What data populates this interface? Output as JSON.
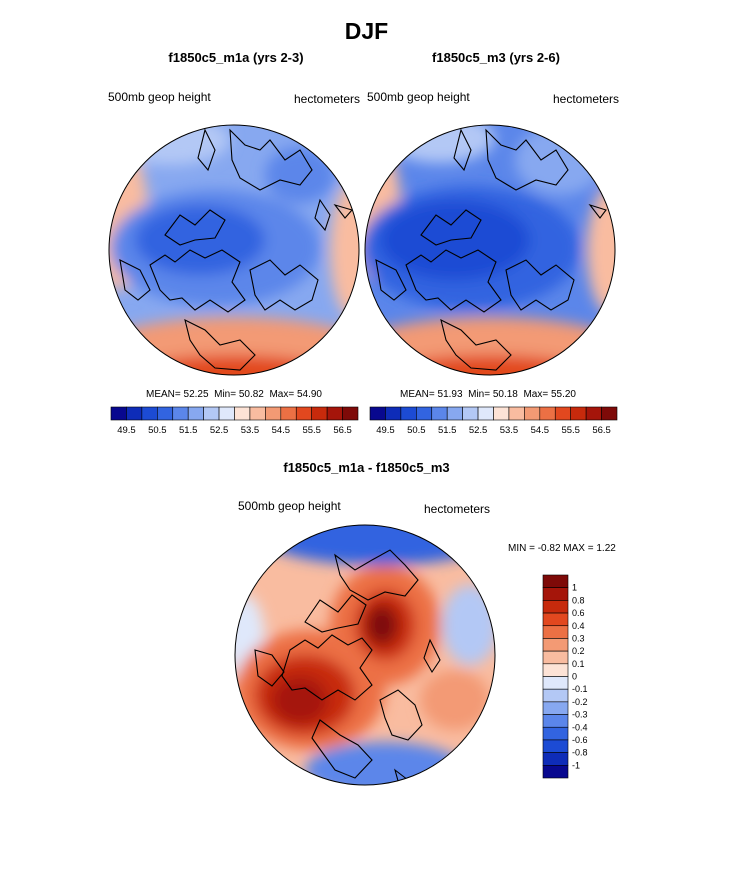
{
  "page": {
    "title": "DJF"
  },
  "panels": [
    {
      "title": "f1850c5_m1a (yrs 2-3)",
      "left_label": "500mb geop height",
      "right_label": "hectometers",
      "stats": {
        "mean_label": "MEAN=",
        "mean": "52.25",
        "min_label": "Min=",
        "min": "50.82",
        "max_label": "Max=",
        "max": "54.90"
      }
    },
    {
      "title": "f1850c5_m3 (yrs 2-6)",
      "left_label": "500mb geop height",
      "right_label": "hectometers",
      "stats": {
        "mean_label": "MEAN=",
        "mean": "51.93",
        "min_label": "Min=",
        "min": "50.18",
        "max_label": "Max=",
        "max": "55.20"
      }
    },
    {
      "title": "f1850c5_m1a - f1850c5_m3",
      "left_label": "500mb geop height",
      "right_label": "hectometers",
      "stats_text": "MIN =  -0.82 MAX =   1.22"
    }
  ],
  "colors": {
    "top_scale": [
      "#08088f",
      "#0e2cb8",
      "#1c4bd4",
      "#3264e0",
      "#5b86ea",
      "#87a8f0",
      "#b3c8f5",
      "#dfe8fb",
      "#fde3d6",
      "#f9bca0",
      "#f39a74",
      "#ec7044",
      "#e2481f",
      "#c72a0c",
      "#a5150a",
      "#7e0a08"
    ],
    "diff_scale": [
      "#7e0a08",
      "#a5150a",
      "#c72a0c",
      "#e2481f",
      "#ec7044",
      "#f39a74",
      "#f9bca0",
      "#fde3d6",
      "#dfe8fb",
      "#b3c8f5",
      "#87a8f0",
      "#5b86ea",
      "#3264e0",
      "#1c4bd4",
      "#0e2cb8",
      "#08088f"
    ]
  },
  "chart_data": [
    {
      "type": "heatmap",
      "projection": "polar stereographic, North Pole",
      "title": "f1850c5_m1a (yrs 2-3)",
      "variable": "500mb geop height",
      "units": "hectometers",
      "mean": 52.25,
      "min": 50.82,
      "max": 54.9,
      "colorbar": {
        "orientation": "horizontal",
        "tick_labels": [
          "49.5",
          "50.5",
          "51.5",
          "52.5",
          "53.5",
          "54.5",
          "55.5",
          "56.5"
        ],
        "levels": [
          49.5,
          50.0,
          50.5,
          51.0,
          51.5,
          52.0,
          52.5,
          53.0,
          53.5,
          54.0,
          54.5,
          55.0,
          55.5,
          56.0,
          56.5
        ]
      }
    },
    {
      "type": "heatmap",
      "projection": "polar stereographic, North Pole",
      "title": "f1850c5_m3 (yrs 2-6)",
      "variable": "500mb geop height",
      "units": "hectometers",
      "mean": 51.93,
      "min": 50.18,
      "max": 55.2,
      "colorbar": {
        "orientation": "horizontal",
        "tick_labels": [
          "49.5",
          "50.5",
          "51.5",
          "52.5",
          "53.5",
          "54.5",
          "55.5",
          "56.5"
        ],
        "levels": [
          49.5,
          50.0,
          50.5,
          51.0,
          51.5,
          52.0,
          52.5,
          53.0,
          53.5,
          54.0,
          54.5,
          55.0,
          55.5,
          56.0,
          56.5
        ]
      }
    },
    {
      "type": "heatmap",
      "projection": "polar stereographic, North Pole",
      "title": "f1850c5_m1a - f1850c5_m3",
      "variable": "500mb geop height",
      "units": "hectometers",
      "min": -0.82,
      "max": 1.22,
      "colorbar": {
        "orientation": "vertical",
        "tick_labels": [
          "1",
          "0.8",
          "0.6",
          "0.4",
          "0.3",
          "0.2",
          "0.1",
          "0",
          "-0.1",
          "-0.2",
          "-0.3",
          "-0.4",
          "-0.6",
          "-0.8",
          "-1"
        ],
        "levels": [
          1,
          0.8,
          0.6,
          0.4,
          0.3,
          0.2,
          0.1,
          0,
          -0.1,
          -0.2,
          -0.3,
          -0.4,
          -0.6,
          -0.8,
          -1
        ]
      }
    }
  ]
}
